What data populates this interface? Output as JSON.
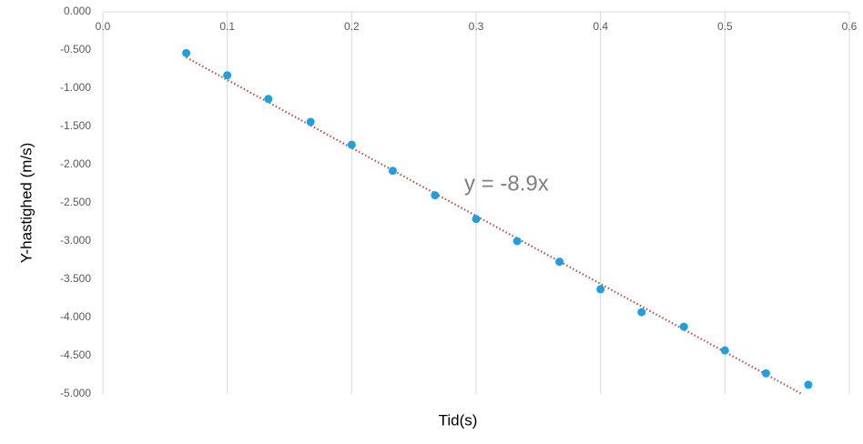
{
  "chart_data": {
    "type": "scatter",
    "x_label": "Tid(s)",
    "y_label": "Y-hastighed (m/s)",
    "series": [
      {
        "name": "Y-hastighed",
        "color": "#1ba1e2",
        "x": [
          0.067,
          0.1,
          0.133,
          0.167,
          0.2,
          0.233,
          0.267,
          0.3,
          0.333,
          0.367,
          0.4,
          0.433,
          0.467,
          0.5,
          0.533,
          0.567
        ],
        "values": [
          -0.54,
          -0.83,
          -1.14,
          -1.44,
          -1.74,
          -2.08,
          -2.4,
          -2.71,
          -3.0,
          -3.27,
          -3.63,
          -3.93,
          -4.12,
          -4.43,
          -4.73,
          -4.88
        ]
      }
    ],
    "trendline": {
      "slope": -8.9,
      "label": "y = -8.9x",
      "color": "#c0504d"
    },
    "xlim": [
      0,
      0.6
    ],
    "ylim": [
      -5,
      0
    ],
    "xticks": [
      {
        "value": 0,
        "label": "0.0"
      },
      0.1,
      0.2,
      0.3,
      0.4,
      0.5,
      0.6
    ],
    "yticks": [
      {
        "value": 0,
        "label": "0.000"
      },
      {
        "value": -0.5,
        "label": "-0.500"
      },
      {
        "value": -1,
        "label": "-1.000"
      },
      {
        "value": -1.5,
        "label": "-1.500"
      },
      {
        "value": -2,
        "label": "-2.000"
      },
      {
        "value": -2.5,
        "label": "-2.500"
      },
      {
        "value": -3,
        "label": "-3.000"
      },
      {
        "value": -3.5,
        "label": "-3.500"
      },
      {
        "value": -4,
        "label": "-4.000"
      },
      {
        "value": -4.5,
        "label": "-4.500"
      },
      {
        "value": -5,
        "label": "-5.000"
      }
    ],
    "grid": "x"
  }
}
